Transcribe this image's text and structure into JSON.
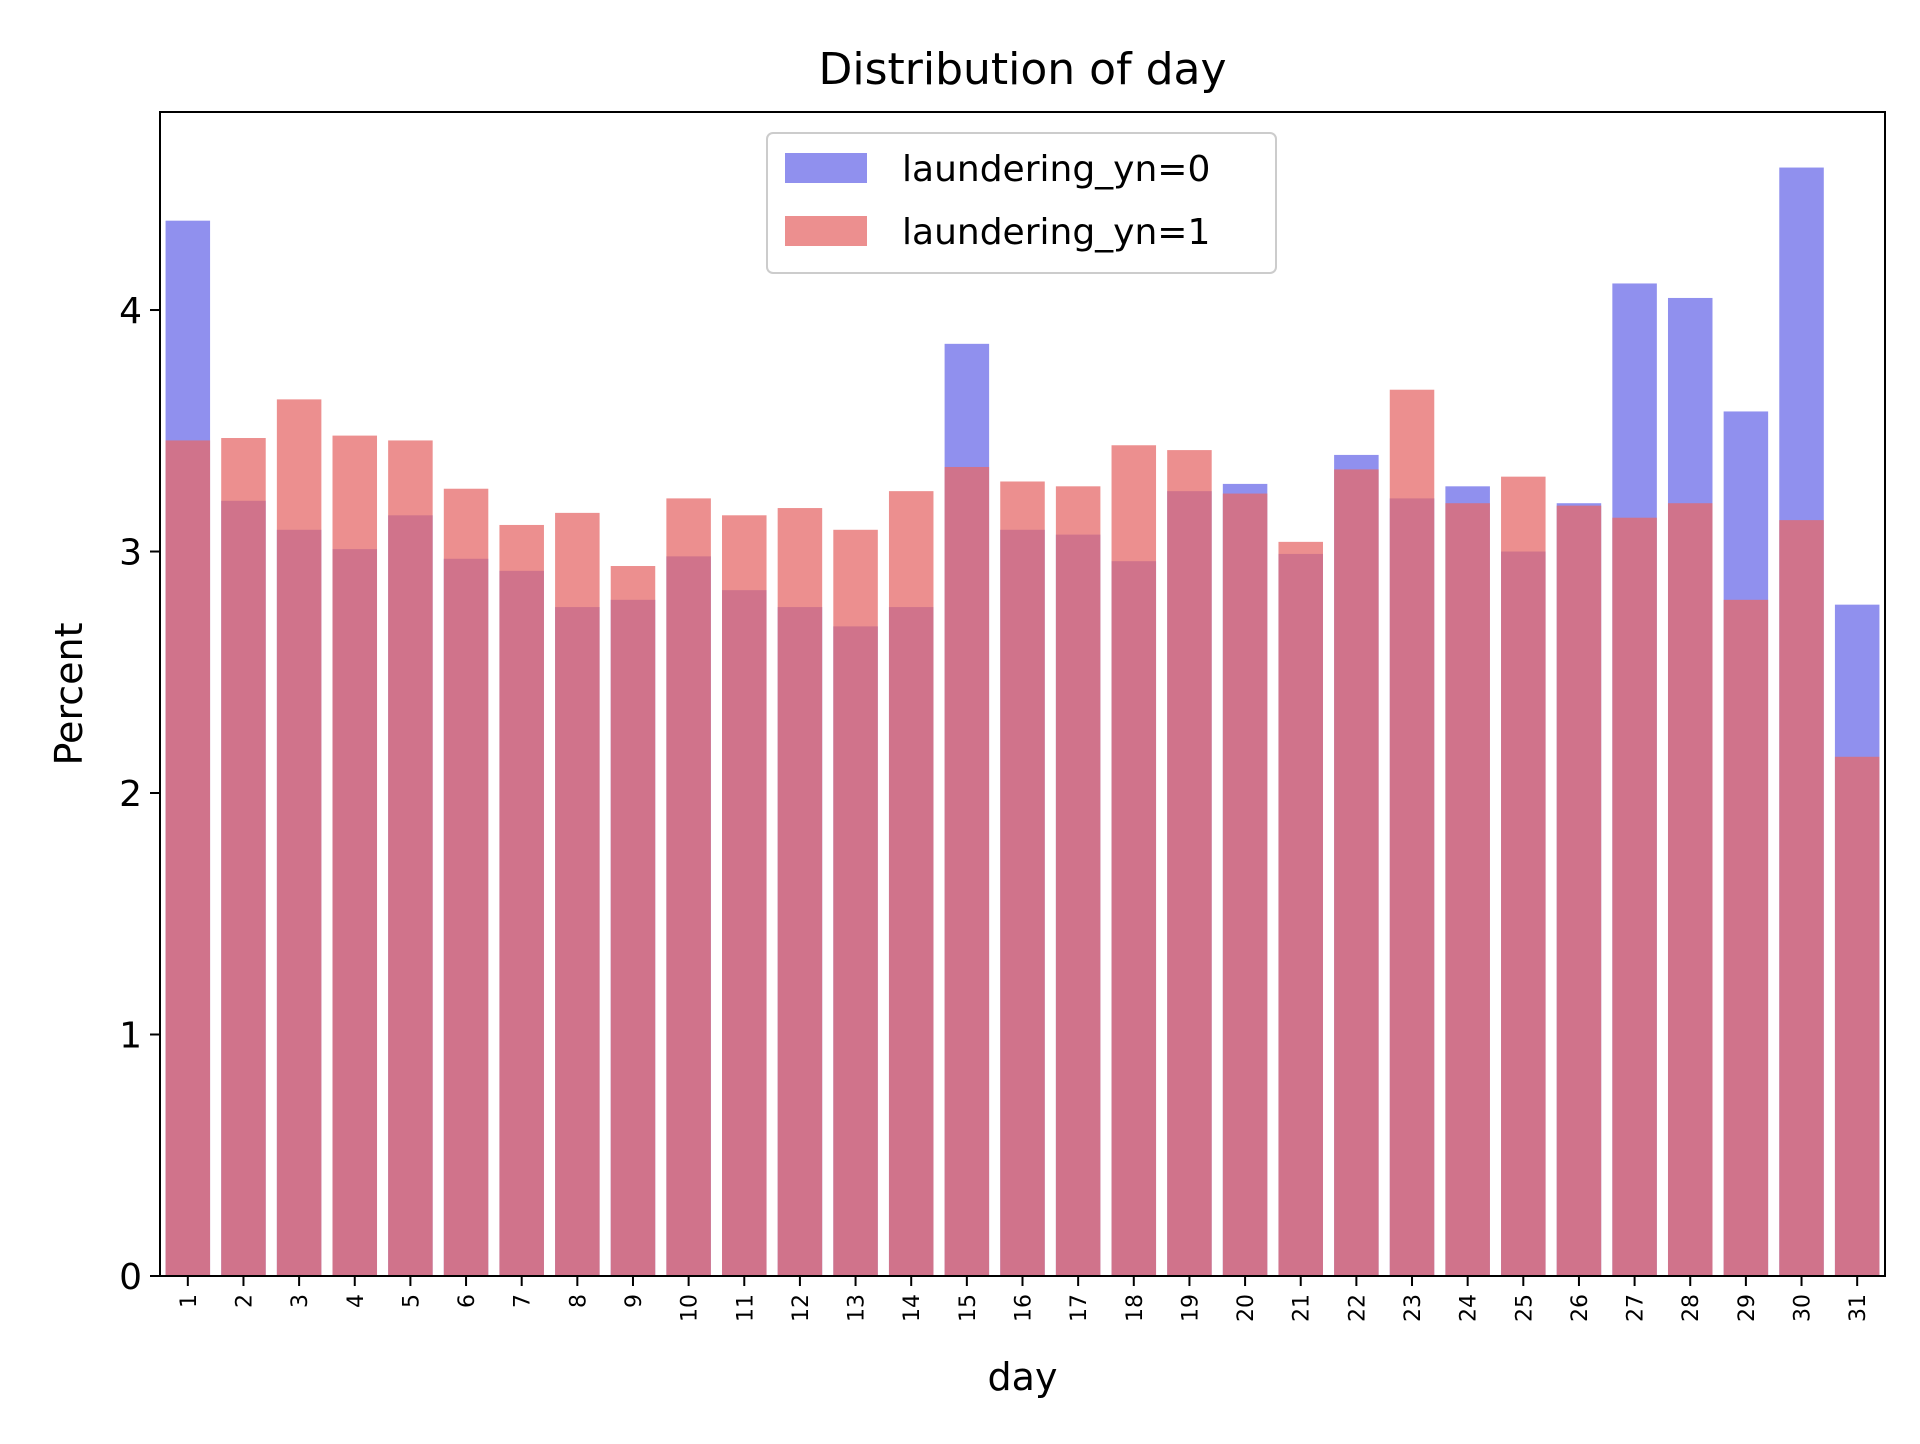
{
  "chart_data": {
    "type": "bar",
    "title": "Distribution of day",
    "xlabel": "day",
    "ylabel": "Percent",
    "ylim": [
      0,
      4.82
    ],
    "yticks": [
      0,
      1,
      2,
      3,
      4
    ],
    "grid": false,
    "legend_position": "top-center",
    "categories": [
      "1",
      "2",
      "3",
      "4",
      "5",
      "6",
      "7",
      "8",
      "9",
      "10",
      "11",
      "12",
      "13",
      "14",
      "15",
      "16",
      "17",
      "18",
      "19",
      "20",
      "21",
      "22",
      "23",
      "24",
      "25",
      "26",
      "27",
      "28",
      "29",
      "30",
      "31"
    ],
    "series": [
      {
        "name": "laundering_yn=0",
        "color": "#6b6be8",
        "values": [
          4.37,
          3.21,
          3.09,
          3.01,
          3.15,
          2.97,
          2.92,
          2.77,
          2.8,
          2.98,
          2.84,
          2.77,
          2.69,
          2.77,
          3.86,
          3.09,
          3.07,
          2.96,
          3.25,
          3.28,
          2.99,
          3.4,
          3.22,
          3.27,
          3.0,
          3.2,
          4.11,
          4.05,
          3.58,
          4.59,
          2.78
        ]
      },
      {
        "name": "laundering_yn=1",
        "color": "#e66a6a",
        "values": [
          3.46,
          3.47,
          3.63,
          3.48,
          3.46,
          3.26,
          3.11,
          3.16,
          2.94,
          3.22,
          3.15,
          3.18,
          3.09,
          3.25,
          3.35,
          3.29,
          3.27,
          3.44,
          3.42,
          3.24,
          3.04,
          3.34,
          3.67,
          3.2,
          3.31,
          3.19,
          3.14,
          3.2,
          2.8,
          3.13,
          2.15
        ]
      }
    ]
  }
}
